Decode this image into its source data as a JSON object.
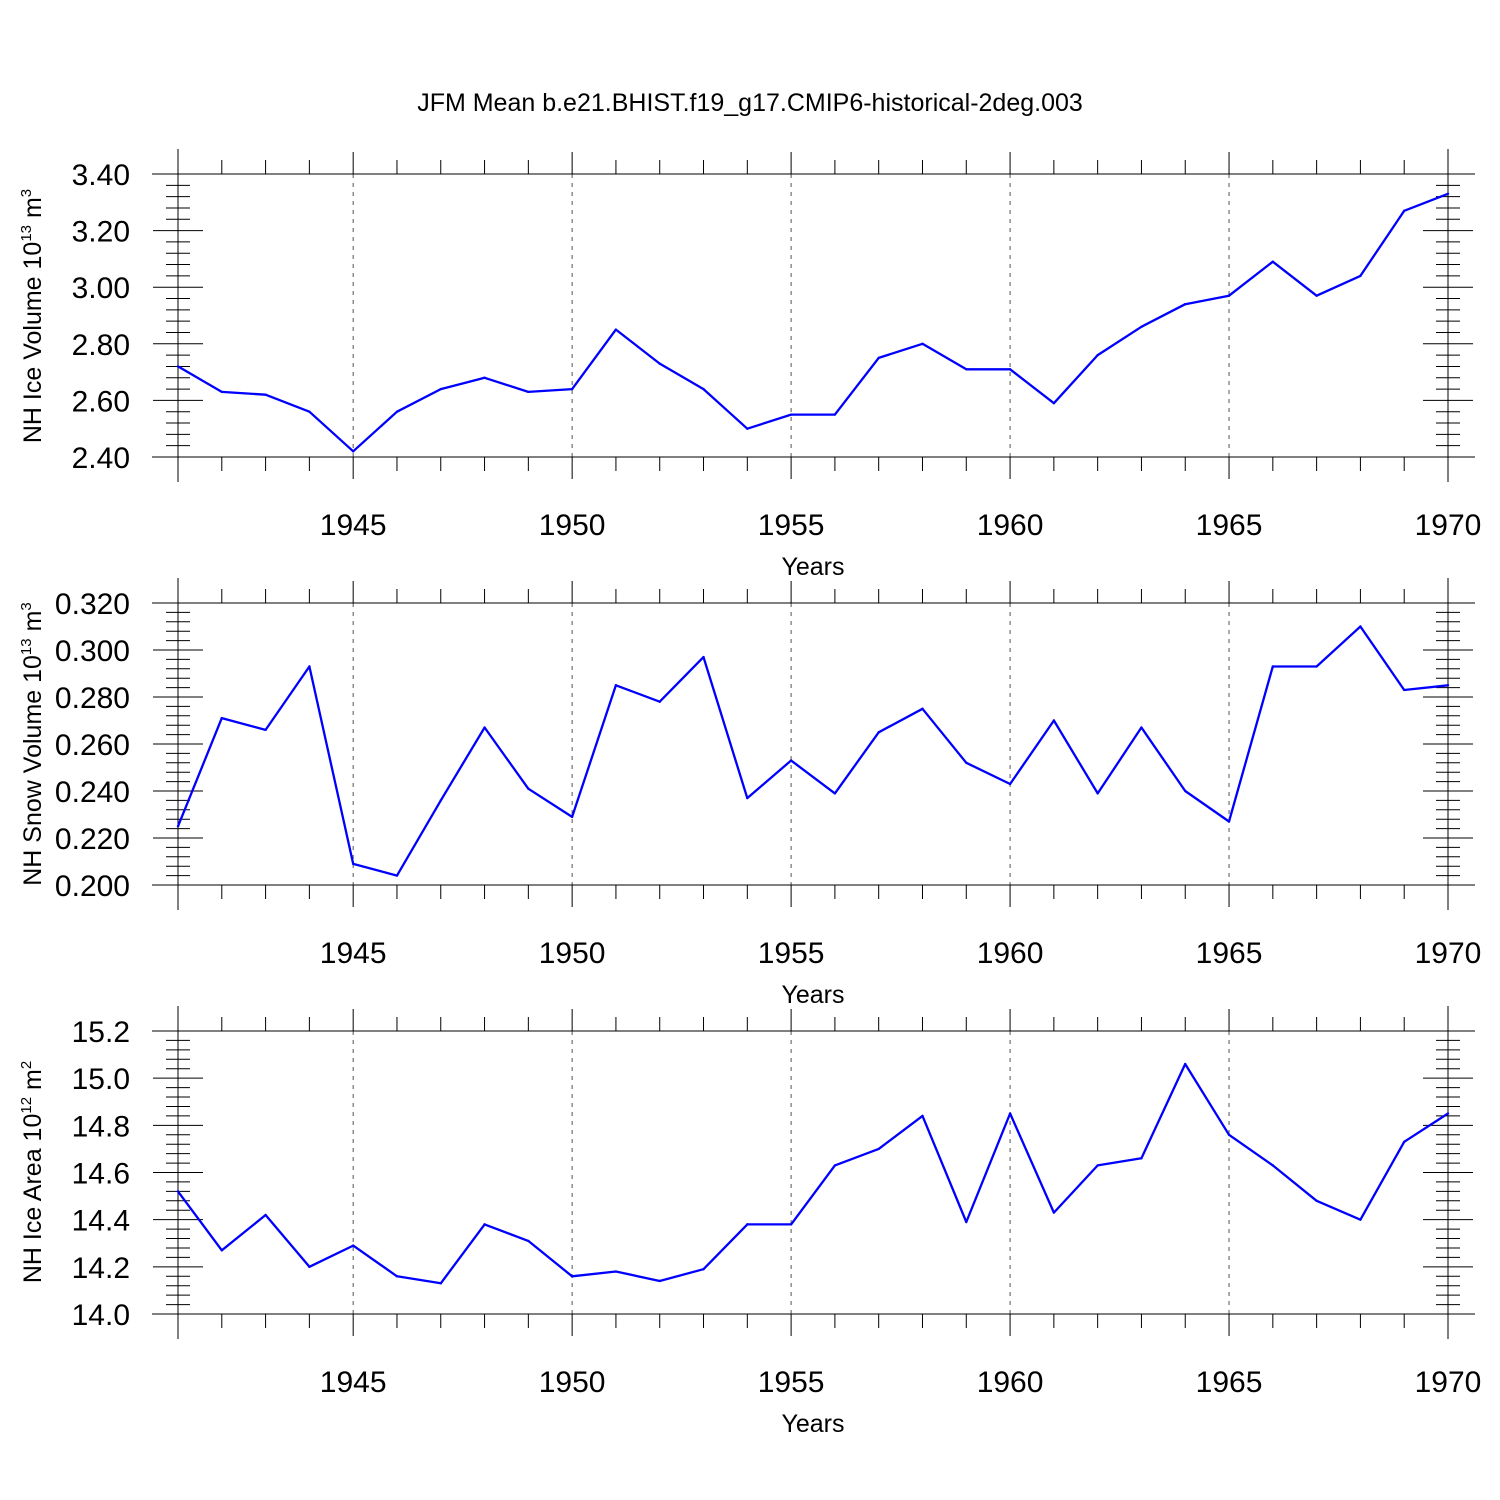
{
  "title": "JFM Mean b.e21.BHIST.f19_g17.CMIP6-historical-2deg.003",
  "colors": {
    "line": "#0000ff",
    "axis": "#000000",
    "grid": "#555555"
  },
  "chart_data": [
    {
      "type": "line",
      "xlabel": "Years",
      "ylabel": {
        "main": "NH Ice Volume 10",
        "sup": "13",
        "unit": " m",
        "unit_sup": "3"
      },
      "xlim": [
        1941,
        1970
      ],
      "ylim": [
        2.4,
        3.4
      ],
      "xticks": [
        "1945",
        "1950",
        "1955",
        "1960",
        "1965",
        "1970"
      ],
      "yticks": [
        "2.40",
        "2.60",
        "2.80",
        "3.00",
        "3.20",
        "3.40"
      ],
      "x": [
        1941,
        1942,
        1943,
        1944,
        1945,
        1946,
        1947,
        1948,
        1949,
        1950,
        1951,
        1952,
        1953,
        1954,
        1955,
        1956,
        1957,
        1958,
        1959,
        1960,
        1961,
        1962,
        1963,
        1964,
        1965,
        1966,
        1967,
        1968,
        1969,
        1970
      ],
      "values": [
        2.72,
        2.63,
        2.62,
        2.56,
        2.42,
        2.56,
        2.64,
        2.68,
        2.63,
        2.64,
        2.85,
        2.73,
        2.64,
        2.5,
        2.55,
        2.55,
        2.75,
        2.8,
        2.71,
        2.71,
        2.59,
        2.76,
        2.86,
        2.94,
        2.97,
        3.09,
        2.97,
        3.04,
        3.27,
        3.33
      ],
      "grid": "dashed vertical lines at major x ticks"
    },
    {
      "type": "line",
      "xlabel": "Years",
      "ylabel": {
        "main": "NH Snow Volume 10",
        "sup": "13",
        "unit": " m",
        "unit_sup": "3"
      },
      "xlim": [
        1941,
        1970
      ],
      "ylim": [
        0.2,
        0.32
      ],
      "xticks": [
        "1945",
        "1950",
        "1955",
        "1960",
        "1965",
        "1970"
      ],
      "yticks": [
        "0.200",
        "0.220",
        "0.240",
        "0.260",
        "0.280",
        "0.300",
        "0.320"
      ],
      "x": [
        1941,
        1942,
        1943,
        1944,
        1945,
        1946,
        1947,
        1948,
        1949,
        1950,
        1951,
        1952,
        1953,
        1954,
        1955,
        1956,
        1957,
        1958,
        1959,
        1960,
        1961,
        1962,
        1963,
        1964,
        1965,
        1966,
        1967,
        1968,
        1969,
        1970
      ],
      "values": [
        0.225,
        0.271,
        0.266,
        0.293,
        0.209,
        0.204,
        0.236,
        0.267,
        0.241,
        0.229,
        0.285,
        0.278,
        0.297,
        0.237,
        0.253,
        0.239,
        0.265,
        0.275,
        0.252,
        0.243,
        0.27,
        0.239,
        0.267,
        0.24,
        0.227,
        0.293,
        0.293,
        0.31,
        0.283,
        0.285
      ],
      "grid": "dashed vertical lines at major x ticks"
    },
    {
      "type": "line",
      "xlabel": "Years",
      "ylabel": {
        "main": "NH Ice Area 10",
        "sup": "12",
        "unit": " m",
        "unit_sup": "2"
      },
      "xlim": [
        1941,
        1970
      ],
      "ylim": [
        14.0,
        15.2
      ],
      "xticks": [
        "1945",
        "1950",
        "1955",
        "1960",
        "1965",
        "1970"
      ],
      "yticks": [
        "14.0",
        "14.2",
        "14.4",
        "14.6",
        "14.8",
        "15.0",
        "15.2"
      ],
      "x": [
        1941,
        1942,
        1943,
        1944,
        1945,
        1946,
        1947,
        1948,
        1949,
        1950,
        1951,
        1952,
        1953,
        1954,
        1955,
        1956,
        1957,
        1958,
        1959,
        1960,
        1961,
        1962,
        1963,
        1964,
        1965,
        1966,
        1967,
        1968,
        1969,
        1970
      ],
      "values": [
        14.52,
        14.27,
        14.42,
        14.2,
        14.29,
        14.16,
        14.13,
        14.38,
        14.31,
        14.16,
        14.18,
        14.14,
        14.19,
        14.38,
        14.38,
        14.63,
        14.7,
        14.84,
        14.39,
        14.85,
        14.43,
        14.63,
        14.66,
        15.06,
        14.76,
        14.63,
        14.48,
        14.4,
        14.73,
        14.85
      ],
      "grid": "dashed vertical lines at major x ticks"
    }
  ]
}
